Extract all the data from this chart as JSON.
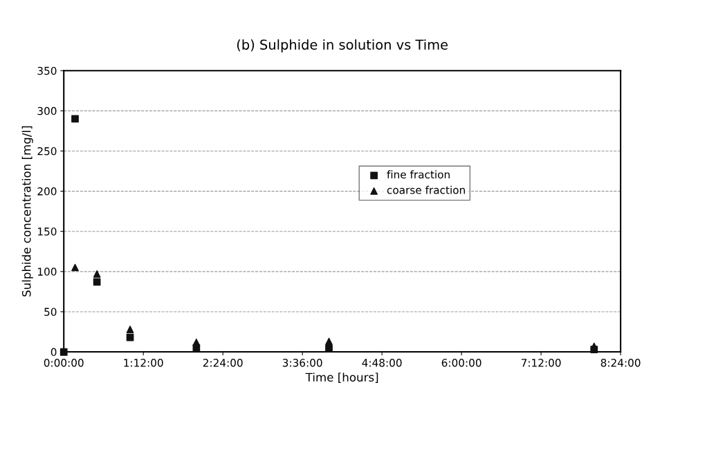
{
  "chart_data": {
    "type": "scatter",
    "title": "(b) Sulphide in solution vs Time",
    "xlabel": "Time [hours]",
    "ylabel": "Sulphide concentration [mg/l]",
    "xlim": [
      0,
      8.4
    ],
    "xticks": [
      {
        "value": 0,
        "label": "0:00:00"
      },
      {
        "value": 1.2,
        "label": "1:12:00"
      },
      {
        "value": 2.4,
        "label": "2:24:00"
      },
      {
        "value": 3.6,
        "label": "3:36:00"
      },
      {
        "value": 4.8,
        "label": "4:48:00"
      },
      {
        "value": 6,
        "label": "6:00:00"
      },
      {
        "value": 7.2,
        "label": "7:12:00"
      },
      {
        "value": 8.4,
        "label": "8:24:00"
      }
    ],
    "ylim": [
      0,
      350
    ],
    "yticks": [
      0,
      50,
      100,
      150,
      200,
      250,
      300,
      350
    ],
    "grid": "y",
    "legend": "center",
    "series": [
      {
        "name": "fine fraction",
        "color": "#111111",
        "marker": "square",
        "x": [
          0,
          0.17,
          0.5,
          1,
          2,
          4,
          8
        ],
        "values": [
          0,
          290,
          87,
          18,
          5,
          4,
          3
        ]
      },
      {
        "name": "coarse fraction",
        "color": "#111111",
        "marker": "triangle",
        "x": [
          0,
          0.17,
          0.5,
          1,
          2,
          4,
          8
        ],
        "values": [
          0,
          105,
          97,
          28,
          12,
          13,
          7
        ]
      }
    ]
  }
}
